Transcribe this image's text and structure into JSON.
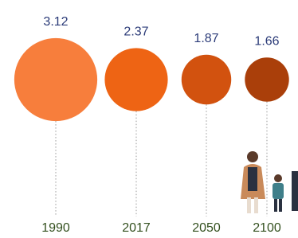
{
  "chart_data": {
    "type": "bubble",
    "categories": [
      "1990",
      "2017",
      "2050",
      "2100"
    ],
    "values": [
      3.12,
      2.37,
      1.87,
      1.66
    ],
    "colors": [
      "#f77e3c",
      "#ee6414",
      "#d2520f",
      "#aa3f0a"
    ]
  }
}
